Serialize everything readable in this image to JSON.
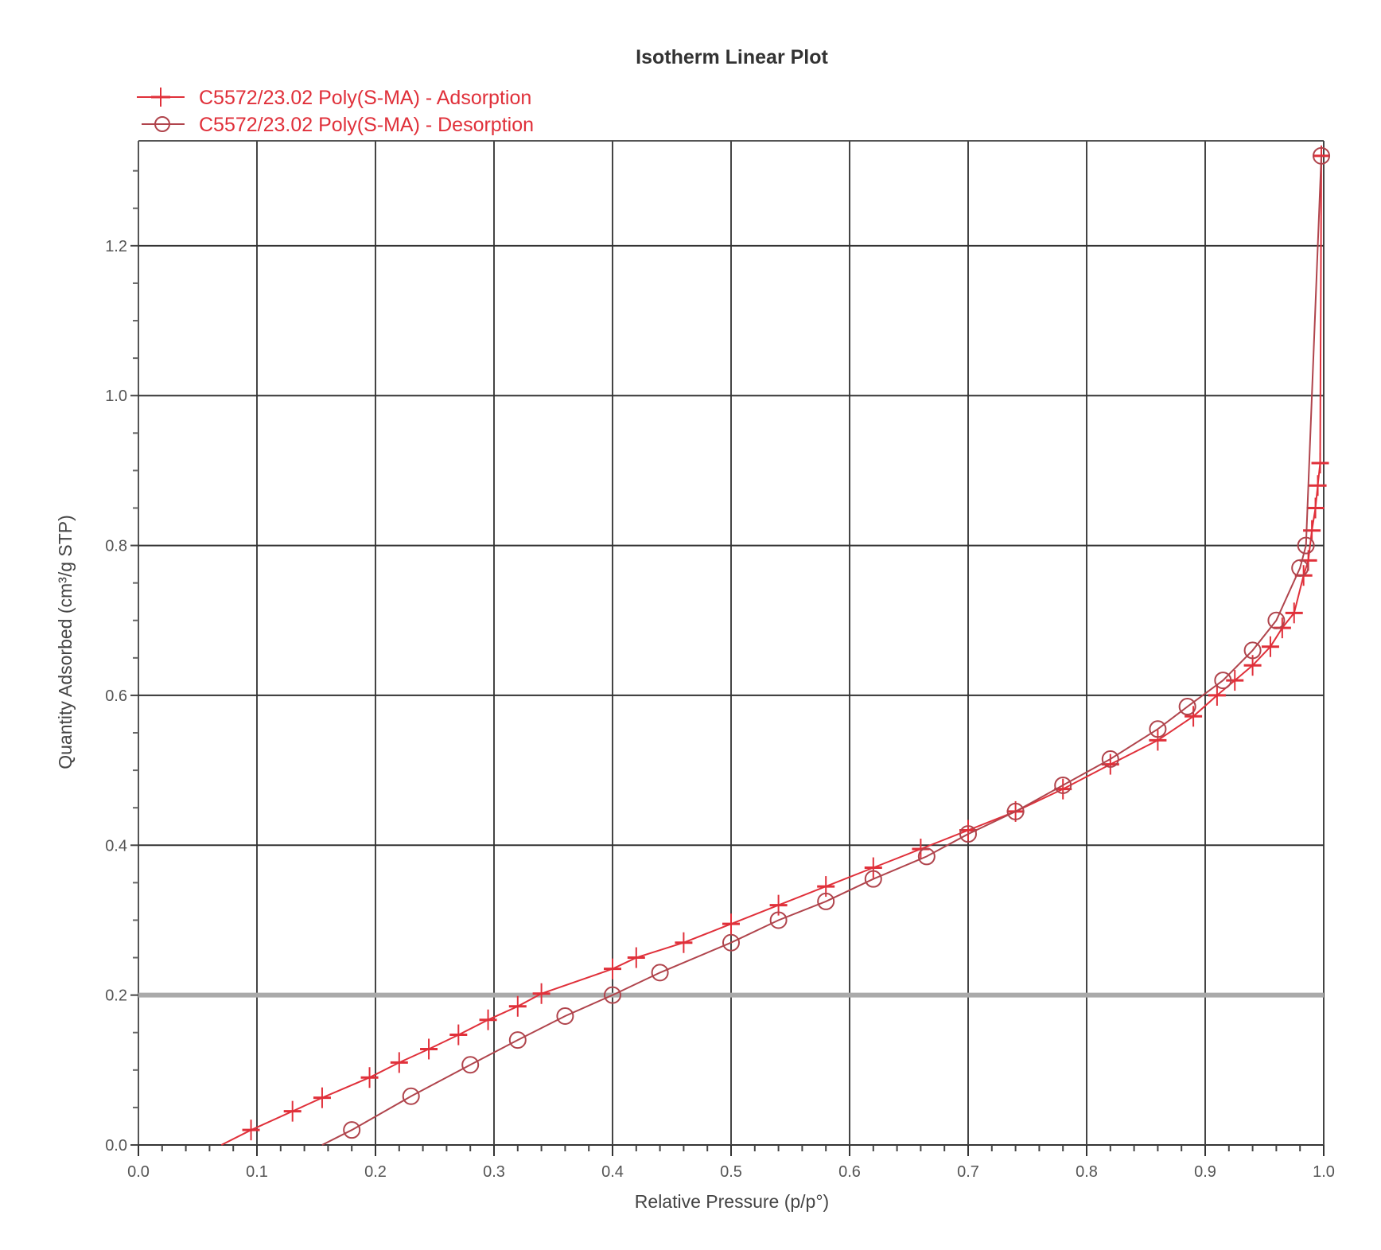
{
  "chart_data": {
    "type": "line",
    "title": "Isotherm Linear Plot",
    "xlabel": "Relative Pressure (p/p°)",
    "ylabel": "Quantity Adsorbed (cm³/g STP)",
    "xlim": [
      0,
      1.0
    ],
    "ylim": [
      0,
      1.34
    ],
    "xticks": [
      "0.0",
      "0.1",
      "0.2",
      "0.3",
      "0.4",
      "0.5",
      "0.6",
      "0.7",
      "0.8",
      "0.9",
      "1.0"
    ],
    "yticks": [
      "0.0",
      "0.2",
      "0.4",
      "0.6",
      "0.8",
      "1.0",
      "1.2"
    ],
    "grid": true,
    "legend_position": "top-left",
    "series": [
      {
        "name": "C5572/23.02 Poly(S-MA) - Adsorption",
        "marker": "plus",
        "color": "#e0303a",
        "x": [
          0.07,
          0.095,
          0.13,
          0.155,
          0.195,
          0.22,
          0.245,
          0.27,
          0.295,
          0.32,
          0.34,
          0.4,
          0.42,
          0.46,
          0.5,
          0.54,
          0.58,
          0.62,
          0.66,
          0.7,
          0.74,
          0.78,
          0.82,
          0.86,
          0.89,
          0.91,
          0.925,
          0.94,
          0.955,
          0.965,
          0.975,
          0.983,
          0.987,
          0.99,
          0.993,
          0.995,
          0.997,
          0.998
        ],
        "y": [
          0.0,
          0.02,
          0.045,
          0.063,
          0.09,
          0.11,
          0.128,
          0.147,
          0.167,
          0.185,
          0.202,
          0.235,
          0.25,
          0.27,
          0.295,
          0.32,
          0.345,
          0.37,
          0.395,
          0.42,
          0.445,
          0.475,
          0.508,
          0.54,
          0.572,
          0.6,
          0.62,
          0.64,
          0.665,
          0.69,
          0.71,
          0.76,
          0.78,
          0.82,
          0.85,
          0.88,
          0.91,
          1.32
        ]
      },
      {
        "name": "C5572/23.02 Poly(S-MA) - Desorption",
        "marker": "circle",
        "color": "#b0444c",
        "x": [
          0.998,
          0.985,
          0.98,
          0.96,
          0.94,
          0.915,
          0.885,
          0.86,
          0.82,
          0.78,
          0.74,
          0.7,
          0.665,
          0.62,
          0.58,
          0.54,
          0.5,
          0.44,
          0.4,
          0.36,
          0.32,
          0.28,
          0.23,
          0.18,
          0.155
        ],
        "y": [
          1.32,
          0.8,
          0.77,
          0.7,
          0.66,
          0.62,
          0.585,
          0.555,
          0.515,
          0.48,
          0.445,
          0.415,
          0.385,
          0.355,
          0.325,
          0.3,
          0.27,
          0.23,
          0.2,
          0.172,
          0.14,
          0.107,
          0.065,
          0.02,
          0.0
        ]
      }
    ]
  }
}
